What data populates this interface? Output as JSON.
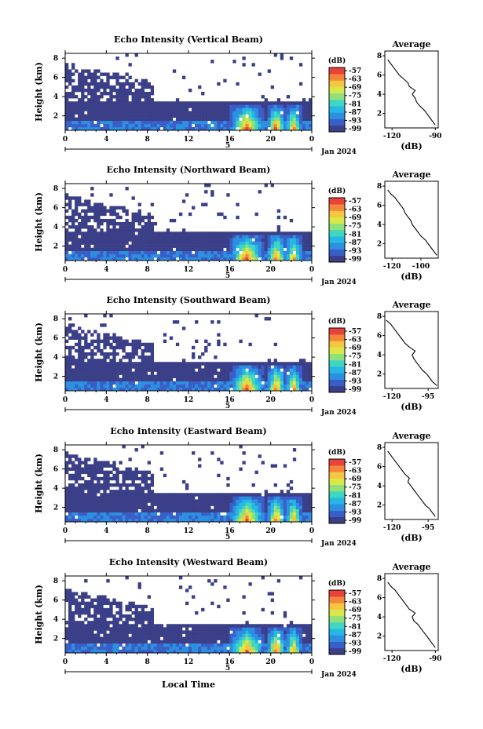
{
  "chart_data": [
    {
      "type": "heatmap",
      "title": "Echo Intensity (Vertical Beam)",
      "ylabel": "Height (km)",
      "x_ticks": [
        "0",
        "4",
        "8",
        "12",
        "16",
        "20",
        "0"
      ],
      "y_ticks": [
        "2",
        "4",
        "6",
        "8"
      ],
      "date_label": "Jan 2024",
      "day_marker": "5",
      "cloud_top_km": 7.6,
      "colorbar": {
        "unit": "(dB)",
        "levels": [
          "-57",
          "-63",
          "-69",
          "-75",
          "-81",
          "-87",
          "-93",
          "-99"
        ]
      },
      "profile": {
        "title": "Average",
        "xlabel": "(dB)",
        "x_ticks": [
          "-120",
          "-90"
        ],
        "xlim": [
          -125,
          -88
        ],
        "y_ticks": [
          "2",
          "4",
          "6",
          "8"
        ],
        "height": [
          0.8,
          1.2,
          1.6,
          2.0,
          2.4,
          2.8,
          3.2,
          3.6,
          4.0,
          4.4,
          4.8,
          5.2,
          5.6,
          6.0,
          6.4,
          6.8,
          7.2,
          7.6
        ],
        "db": [
          -90,
          -92,
          -94,
          -96,
          -98,
          -101,
          -103,
          -104,
          -106,
          -104,
          -108,
          -109,
          -112,
          -115,
          -117,
          -119,
          -121,
          -123
        ]
      }
    },
    {
      "type": "heatmap",
      "title": "Echo Intensity (Northward Beam)",
      "ylabel": "Height (km)",
      "x_ticks": [
        "0",
        "4",
        "8",
        "12",
        "16",
        "20",
        "0"
      ],
      "y_ticks": [
        "2",
        "4",
        "6",
        "8"
      ],
      "date_label": "Jan 2024",
      "day_marker": "5",
      "cloud_top_km": 7.4,
      "colorbar": {
        "unit": "(dB)",
        "levels": [
          "-57",
          "-63",
          "-69",
          "-75",
          "-81",
          "-87",
          "-93",
          "-99"
        ]
      },
      "profile": {
        "title": "Average",
        "xlabel": "(dB)",
        "x_ticks": [
          "-120",
          "-100"
        ],
        "xlim": [
          -125,
          -88
        ],
        "y_ticks": [
          "2",
          "4",
          "6",
          "8"
        ],
        "height": [
          0.8,
          1.2,
          1.6,
          2.0,
          2.4,
          2.8,
          3.2,
          3.6,
          4.0,
          4.4,
          4.8,
          5.2,
          5.6,
          6.0,
          6.4,
          6.8,
          7.2,
          7.6
        ],
        "db": [
          -89,
          -91,
          -93,
          -95,
          -97,
          -100,
          -102,
          -104,
          -106,
          -107,
          -109,
          -111,
          -112,
          -114,
          -116,
          -118,
          -121,
          -123
        ]
      }
    },
    {
      "type": "heatmap",
      "title": "Echo Intensity (Southward Beam)",
      "ylabel": "Height (km)",
      "x_ticks": [
        "0",
        "4",
        "8",
        "12",
        "16",
        "20",
        "0"
      ],
      "y_ticks": [
        "2",
        "4",
        "6",
        "8"
      ],
      "date_label": "Jan 2024",
      "day_marker": "5",
      "cloud_top_km": 7.5,
      "colorbar": {
        "unit": "(dB)",
        "levels": [
          "-57",
          "-63",
          "-69",
          "-75",
          "-81",
          "-87",
          "-93",
          "-99"
        ]
      },
      "profile": {
        "title": "Average",
        "xlabel": "(dB)",
        "x_ticks": [
          "-120",
          "-95"
        ],
        "xlim": [
          -125,
          -88
        ],
        "y_ticks": [
          "2",
          "4",
          "6",
          "8"
        ],
        "height": [
          0.8,
          1.2,
          1.6,
          2.0,
          2.4,
          2.8,
          3.2,
          3.6,
          4.0,
          4.4,
          4.8,
          5.2,
          5.6,
          6.0,
          6.4,
          6.8,
          7.2,
          7.6
        ],
        "db": [
          -89,
          -92,
          -94,
          -96,
          -99,
          -101,
          -103,
          -105,
          -106,
          -104,
          -108,
          -111,
          -113,
          -115,
          -117,
          -119,
          -121,
          -124
        ]
      }
    },
    {
      "type": "heatmap",
      "title": "Echo Intensity (Eastward Beam)",
      "ylabel": "Height (km)",
      "x_ticks": [
        "0",
        "4",
        "8",
        "12",
        "16",
        "20",
        "0"
      ],
      "y_ticks": [
        "2",
        "4",
        "6",
        "8"
      ],
      "date_label": "Jan 2024",
      "day_marker": "5",
      "cloud_top_km": 7.7,
      "colorbar": {
        "unit": "(dB)",
        "levels": [
          "-57",
          "-63",
          "-69",
          "-75",
          "-81",
          "-87",
          "-93",
          "-99"
        ]
      },
      "profile": {
        "title": "Average",
        "xlabel": "(dB)",
        "x_ticks": [
          "-120",
          "-95"
        ],
        "xlim": [
          -125,
          -88
        ],
        "y_ticks": [
          "2",
          "4",
          "6",
          "8"
        ],
        "height": [
          0.8,
          1.2,
          1.6,
          2.0,
          2.4,
          2.8,
          3.2,
          3.6,
          4.0,
          4.4,
          4.8,
          5.2,
          5.6,
          6.0,
          6.4,
          6.8,
          7.2,
          7.6
        ],
        "db": [
          -90,
          -92,
          -94,
          -97,
          -99,
          -101,
          -103,
          -105,
          -107,
          -109,
          -108,
          -111,
          -113,
          -115,
          -117,
          -119,
          -121,
          -123
        ]
      }
    },
    {
      "type": "heatmap",
      "title": "Echo Intensity (Westward Beam)",
      "ylabel": "Height (km)",
      "x_ticks": [
        "0",
        "4",
        "8",
        "12",
        "16",
        "20",
        "0"
      ],
      "y_ticks": [
        "2",
        "4",
        "6",
        "8"
      ],
      "date_label": "Jan 2024",
      "day_marker": "5",
      "xlabel": "Local Time",
      "cloud_top_km": 7.3,
      "colorbar": {
        "unit": "(dB)",
        "levels": [
          "-57",
          "-63",
          "-69",
          "-75",
          "-81",
          "-87",
          "-93",
          "-99"
        ]
      },
      "profile": {
        "title": "Average",
        "xlabel": "(dB)",
        "x_ticks": [
          "-120",
          "-90"
        ],
        "xlim": [
          -125,
          -88
        ],
        "y_ticks": [
          "2",
          "4",
          "6",
          "8"
        ],
        "height": [
          0.8,
          1.2,
          1.6,
          2.0,
          2.4,
          2.8,
          3.2,
          3.6,
          4.0,
          4.4,
          4.8,
          5.2,
          5.6,
          6.0,
          6.4,
          6.8,
          7.2,
          7.6
        ],
        "db": [
          -90,
          -92,
          -94,
          -96,
          -98,
          -100,
          -102,
          -105,
          -106,
          -104,
          -108,
          -110,
          -112,
          -114,
          -116,
          -118,
          -121,
          -123
        ]
      }
    }
  ],
  "colors": {
    "palette": [
      "#3b3f88",
      "#3a5ec8",
      "#2c8fe0",
      "#27b7e6",
      "#3fd6c3",
      "#8fe07a",
      "#d8e84a",
      "#f6c640",
      "#f4853a",
      "#e8433a"
    ],
    "background": "#ffffff",
    "line": "#000000"
  }
}
